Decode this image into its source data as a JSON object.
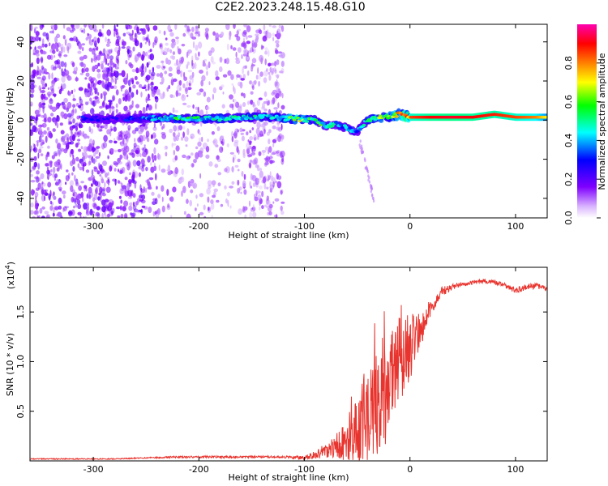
{
  "title": "C2E2.2023.248.15.48.G10",
  "chart_data": [
    {
      "type": "heatmap",
      "xlabel": "Height of straight line (km)",
      "ylabel": "Frequency (Hz)",
      "xlim": [
        -360,
        130
      ],
      "ylim": [
        -50,
        49
      ],
      "xticks": [
        -300,
        -200,
        -100,
        0,
        100
      ],
      "xtick_labels": [
        "-300",
        "-200",
        "-100",
        "0",
        "100"
      ],
      "yticks": [
        -40,
        -20,
        0,
        20,
        40
      ],
      "ytick_labels": [
        "-40",
        "-20",
        "0",
        "20",
        "40"
      ],
      "colorbar": {
        "label": "Normalized spectral amplitude",
        "range": [
          0,
          1
        ],
        "ticks": [
          0.0,
          0.2,
          0.4,
          0.6,
          0.8
        ],
        "tick_labels": [
          "0.0",
          "0.2",
          "0.4",
          "0.6",
          "0.8"
        ],
        "colors": [
          "#ffffff",
          "#7f00ff",
          "#0000ff",
          "#00ffff",
          "#00ff00",
          "#ffff00",
          "#ff8000",
          "#ff0000",
          "#ff00b0"
        ]
      },
      "trace": {
        "x": [
          -310,
          -280,
          -250,
          -220,
          -200,
          -170,
          -150,
          -130,
          -110,
          -90,
          -80,
          -70,
          -60,
          -50,
          -40,
          -30,
          -20,
          -10,
          0,
          20,
          40,
          60,
          80,
          100,
          120,
          130
        ],
        "frequency": [
          1,
          0.5,
          1,
          1,
          0.5,
          1,
          1.5,
          1.5,
          0.5,
          0,
          -3,
          -2,
          -4,
          -6,
          0,
          1,
          2,
          3,
          1.5,
          1.5,
          1.5,
          1.5,
          3,
          1.5,
          1.5,
          1.5
        ],
        "amplitude": [
          0.3,
          0.25,
          0.4,
          0.55,
          0.55,
          0.5,
          0.5,
          0.45,
          0.7,
          0.6,
          0.55,
          0.45,
          0.45,
          0.4,
          0.55,
          0.65,
          0.6,
          0.8,
          0.85,
          0.9,
          0.92,
          0.9,
          0.88,
          0.85,
          0.8,
          0.7
        ]
      }
    },
    {
      "type": "line",
      "xlabel": "Height of straight line (km)",
      "ylabel": "SNR (10 * v/v)",
      "scale_label": "(x10",
      "scale_exponent": "4",
      "scale_suffix": ")",
      "xlim": [
        -360,
        130
      ],
      "ylim": [
        0,
        1.95
      ],
      "xticks": [
        -300,
        -200,
        -100,
        0,
        100
      ],
      "xtick_labels": [
        "-300",
        "-200",
        "-100",
        "0",
        "100"
      ],
      "yticks": [
        0.5,
        1.0,
        1.5
      ],
      "ytick_labels": [
        "0.5",
        "1.0",
        "1.5"
      ],
      "color": "#e8342e",
      "series": [
        {
          "name": "SNR",
          "x": [
            -360,
            -320,
            -280,
            -250,
            -220,
            -200,
            -180,
            -160,
            -140,
            -120,
            -100,
            -90,
            -80,
            -70,
            -60,
            -50,
            -45,
            -40,
            -35,
            -30,
            -25,
            -20,
            -15,
            -10,
            -5,
            0,
            10,
            20,
            30,
            40,
            50,
            60,
            70,
            80,
            90,
            100,
            110,
            120,
            130
          ],
          "values": [
            0.02,
            0.02,
            0.02,
            0.03,
            0.04,
            0.04,
            0.04,
            0.04,
            0.04,
            0.04,
            0.03,
            0.06,
            0.1,
            0.15,
            0.2,
            0.3,
            0.4,
            0.45,
            0.5,
            0.55,
            0.65,
            0.8,
            0.9,
            1.0,
            1.1,
            1.15,
            1.3,
            1.55,
            1.7,
            1.75,
            1.78,
            1.8,
            1.81,
            1.8,
            1.76,
            1.72,
            1.75,
            1.76,
            1.73
          ],
          "noise": [
            0.005,
            0.005,
            0.005,
            0.006,
            0.01,
            0.01,
            0.01,
            0.01,
            0.01,
            0.01,
            0.02,
            0.04,
            0.08,
            0.12,
            0.25,
            0.35,
            0.45,
            0.5,
            0.5,
            0.55,
            0.55,
            0.5,
            0.5,
            0.45,
            0.4,
            0.35,
            0.2,
            0.08,
            0.05,
            0.03,
            0.02,
            0.02,
            0.02,
            0.02,
            0.03,
            0.03,
            0.03,
            0.03,
            0.02
          ]
        }
      ]
    }
  ]
}
